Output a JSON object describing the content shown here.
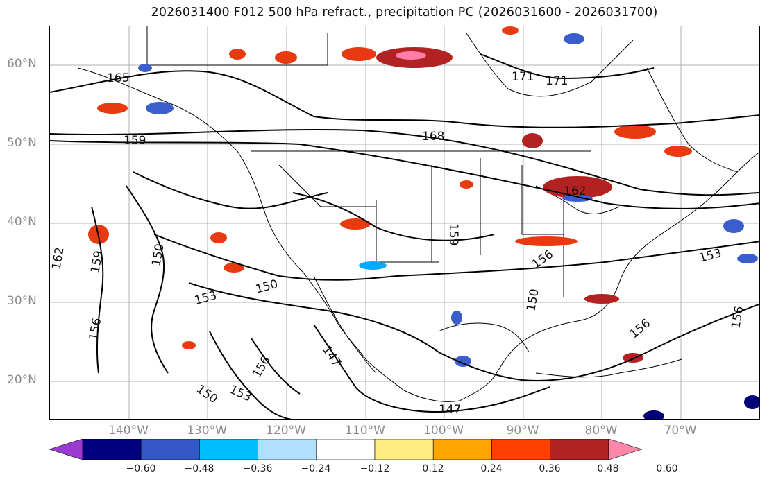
{
  "title": "2026031400 F012 500 hPa refract., precipitation PC (2026031600 - 2026031700)",
  "latitude_labels": [
    "60°N",
    "50°N",
    "40°N",
    "30°N",
    "20°N"
  ],
  "longitude_labels": [
    "140°W",
    "130°W",
    "120°W",
    "110°W",
    "100°W",
    "90°W",
    "80°W",
    "70°W"
  ],
  "contour_labels": [
    "165",
    "171",
    "171",
    "168",
    "159",
    "162",
    "159",
    "150",
    "159",
    "162",
    "153",
    "150",
    "156",
    "156",
    "150",
    "153",
    "156",
    "147",
    "147",
    "150",
    "153",
    "156",
    "156"
  ],
  "colorbar": {
    "ticks": [
      "−0.60",
      "−0.48",
      "−0.36",
      "−0.24",
      "−0.12",
      "0.12",
      "0.24",
      "0.36",
      "0.48",
      "0.60"
    ],
    "colors": [
      "#9a3ad0",
      "#000080",
      "#3457c7",
      "#00bfff",
      "#b0e0ff",
      "#ffffff",
      "#ffec80",
      "#ffa500",
      "#ff4000",
      "#b22222",
      "#ff88aa"
    ]
  },
  "fill_colors": {
    "red": "#e83a10",
    "orange": "#ff9f00",
    "yellow": "#ffe66a",
    "darkred": "#b32222",
    "pink": "#ff7faa",
    "blue": "#3a5fcd",
    "lightblue": "#00aaff",
    "navy": "#00007a"
  }
}
